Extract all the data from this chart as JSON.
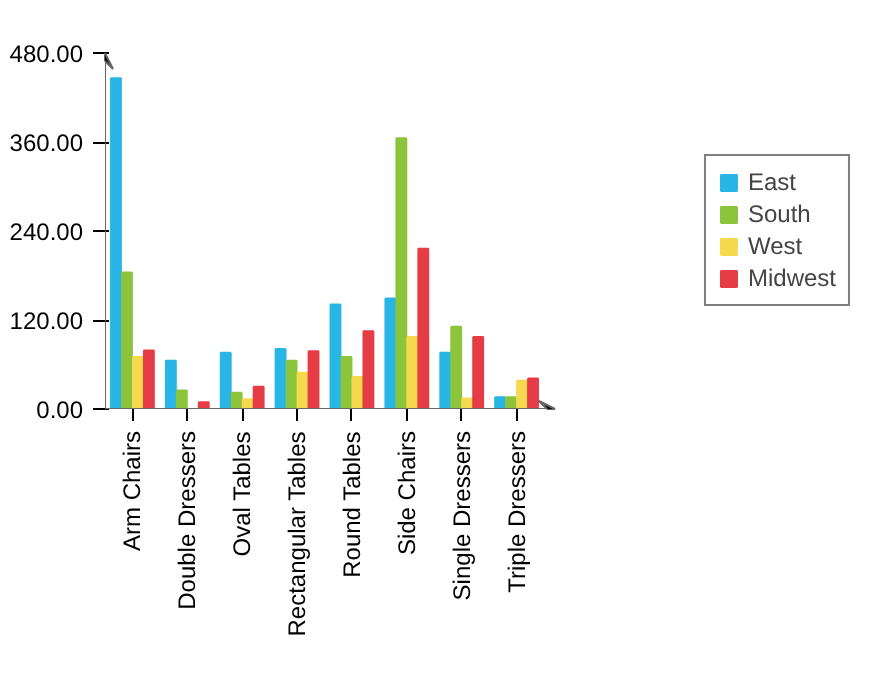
{
  "chart_data": {
    "type": "bar",
    "categories": [
      "Arm Chairs",
      "Double Dressers",
      "Oval Tables",
      "Rectangular Tables",
      "Round Tables",
      "Side Chairs",
      "Single Dressers",
      "Triple Dressers"
    ],
    "series": [
      {
        "name": "East",
        "color": "#29b6e6",
        "values": [
          446,
          65,
          76,
          81,
          141,
          149,
          76,
          16
        ]
      },
      {
        "name": "South",
        "color": "#8cc43c",
        "values": [
          184,
          25,
          22,
          65,
          70,
          365,
          111,
          16
        ]
      },
      {
        "name": "West",
        "color": "#f5d94e",
        "values": [
          70,
          0,
          13,
          49,
          43,
          97,
          14,
          38
        ]
      },
      {
        "name": "Midwest",
        "color": "#e63c46",
        "values": [
          79,
          9,
          30,
          78,
          105,
          216,
          97,
          41
        ]
      }
    ],
    "ylim": [
      0,
      480
    ],
    "yticks": [
      {
        "value": 0,
        "label": "0.00"
      },
      {
        "value": 120,
        "label": "120.00"
      },
      {
        "value": 240,
        "label": "240.00"
      },
      {
        "value": 360,
        "label": "360.00"
      },
      {
        "value": 480,
        "label": "480.00"
      }
    ],
    "grid": false,
    "legend": "right"
  }
}
